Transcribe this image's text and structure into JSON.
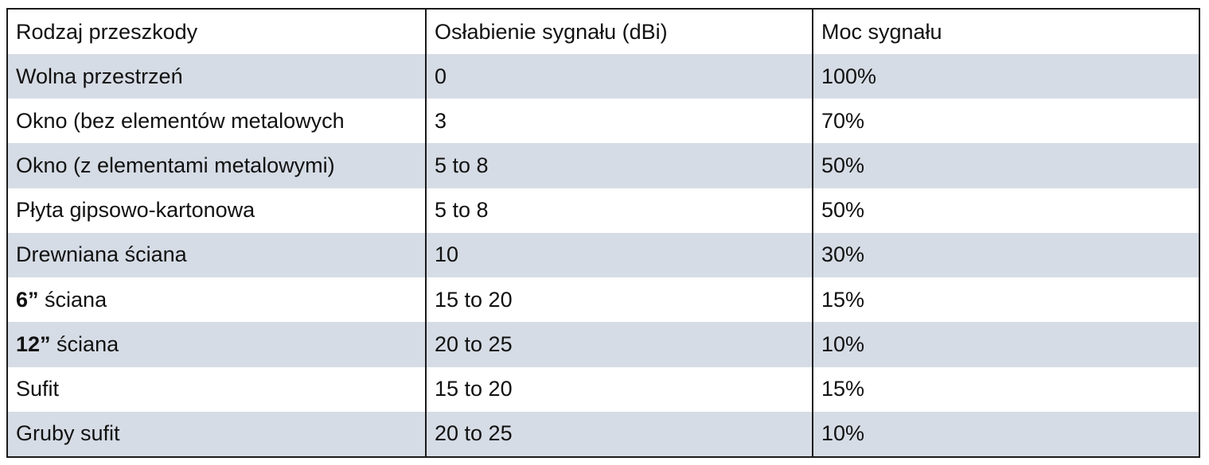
{
  "table": {
    "headers": [
      "Rodzaj przeszkody",
      "Osłabienie sygnału (dBi)",
      "Moc sygnału"
    ],
    "rows": [
      {
        "name": "Wolna przestrzeń",
        "name_bold": "",
        "name_rest": "",
        "attenuation": "0",
        "power": "100%"
      },
      {
        "name": "Okno (bez elementów metalowych",
        "name_bold": "",
        "name_rest": "",
        "attenuation": "3",
        "power": "70%"
      },
      {
        "name": "Okno (z elementami metalowymi)",
        "name_bold": "",
        "name_rest": "",
        "attenuation": "5 to 8",
        "power": "50%"
      },
      {
        "name": "Płyta gipsowo-kartonowa",
        "name_bold": "",
        "name_rest": "",
        "attenuation": "5 to 8",
        "power": "50%"
      },
      {
        "name": "Drewniana ściana",
        "name_bold": "",
        "name_rest": "",
        "attenuation": "10",
        "power": "30%"
      },
      {
        "name": "",
        "name_bold": "6”",
        "name_rest": " ściana",
        "attenuation": "15 to 20",
        "power": "15%"
      },
      {
        "name": "",
        "name_bold": "12”",
        "name_rest": " ściana",
        "attenuation": "20 to 25",
        "power": "10%"
      },
      {
        "name": "Sufit",
        "name_bold": "",
        "name_rest": "",
        "attenuation": "15 to 20",
        "power": "15%"
      },
      {
        "name": "Gruby sufit",
        "name_bold": "",
        "name_rest": "",
        "attenuation": "20 to 25",
        "power": "10%"
      }
    ]
  }
}
